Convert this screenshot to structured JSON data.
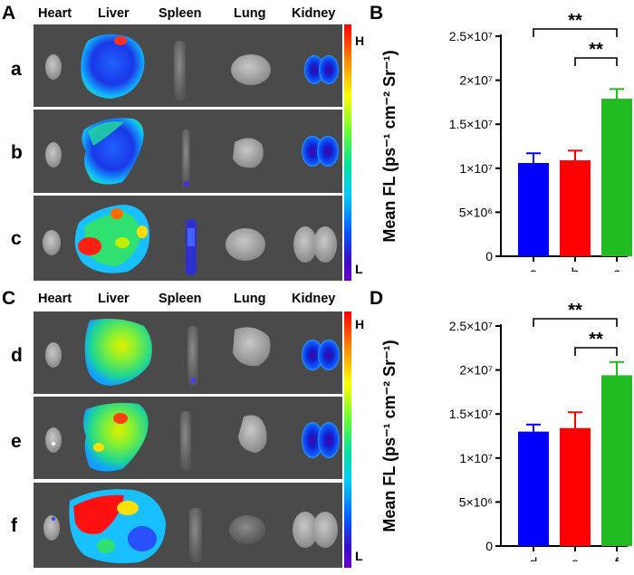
{
  "panels": {
    "A": "A",
    "B": "B",
    "C": "C",
    "D": "D"
  },
  "organs": [
    "Heart",
    "Liver",
    "Spleen",
    "Lung",
    "Kidney"
  ],
  "imaging_top": {
    "rows": [
      "a",
      "b",
      "c"
    ],
    "scale_high": "H",
    "scale_low": "L"
  },
  "imaging_bottom": {
    "rows": [
      "d",
      "e",
      "f"
    ],
    "scale_high": "H",
    "scale_low": "L"
  },
  "colors": {
    "blue": "#0000ff",
    "red": "#ff0000",
    "green": "#22bb22"
  },
  "chart_data": [
    {
      "type": "bar",
      "panel": "B",
      "categories": [
        "a",
        "b",
        "c"
      ],
      "values": [
        10600000,
        10900000,
        17900000
      ],
      "errors": [
        1100000,
        1100000,
        1100000
      ],
      "colors": [
        "#0000ff",
        "#ff0000",
        "#22bb22"
      ],
      "ylabel": "Mean FL (ps⁻¹ cm⁻² Sr⁻¹)",
      "ylim": [
        0,
        25000000
      ],
      "yticks": [
        0,
        5000000,
        10000000,
        15000000,
        20000000,
        25000000
      ],
      "ytick_labels": [
        "0",
        "5×10⁶",
        "1×10⁷",
        "1.5×10⁷",
        "2×10⁷",
        "2.5×10⁷"
      ],
      "significance": [
        {
          "from": "a",
          "to": "c",
          "label": "**"
        },
        {
          "from": "b",
          "to": "c",
          "label": "**"
        }
      ]
    },
    {
      "type": "bar",
      "panel": "D",
      "categories": [
        "d",
        "e",
        "f"
      ],
      "values": [
        13000000,
        13400000,
        19400000
      ],
      "errors": [
        800000,
        1800000,
        1500000
      ],
      "colors": [
        "#0000ff",
        "#ff0000",
        "#22bb22"
      ],
      "ylabel": "Mean FL (ps⁻¹ cm⁻² Sr⁻¹)",
      "ylim": [
        0,
        25000000
      ],
      "yticks": [
        0,
        5000000,
        10000000,
        15000000,
        20000000,
        25000000
      ],
      "ytick_labels": [
        "0",
        "5×10⁶",
        "1×10⁷",
        "1.5×10⁷",
        "2×10⁷",
        "2.5×10⁷"
      ],
      "significance": [
        {
          "from": "d",
          "to": "f",
          "label": "**"
        },
        {
          "from": "e",
          "to": "f",
          "label": "**"
        }
      ]
    }
  ]
}
